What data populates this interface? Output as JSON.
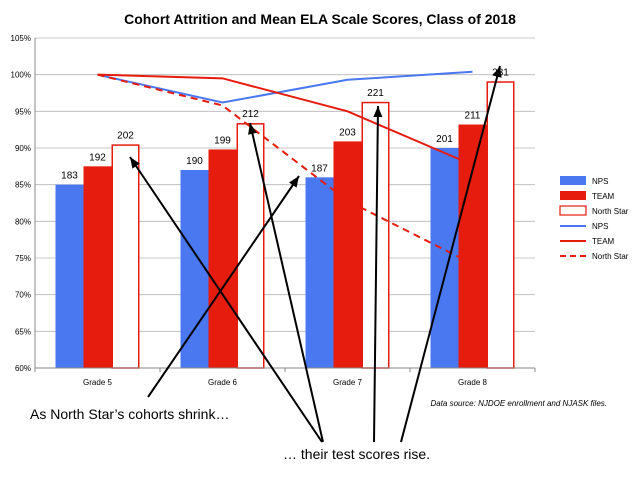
{
  "chart_data": {
    "type": "bar",
    "title": "Cohort Attrition and Mean ELA Scale Scores, Class of 2018",
    "categories": [
      "Grade 5",
      "Grade 6",
      "Grade 7",
      "Grade 8"
    ],
    "ylim": [
      0.6,
      1.05
    ],
    "yticks": [
      "60%",
      "65%",
      "70%",
      "75%",
      "80%",
      "85%",
      "90%",
      "95%",
      "100%",
      "105%"
    ],
    "grid": true,
    "legend_position": "right",
    "bar_series": [
      {
        "name": "NPS",
        "color": "#4a78f0",
        "style": "filled",
        "values": [
          0.85,
          0.87,
          0.86,
          0.9
        ],
        "labels": [
          "183",
          "190",
          "187",
          "201"
        ]
      },
      {
        "name": "TEAM",
        "color": "#e51c0e",
        "style": "filled",
        "values": [
          0.875,
          0.898,
          0.909,
          0.932
        ],
        "labels": [
          "192",
          "199",
          "203",
          "211"
        ]
      },
      {
        "name": "North Star",
        "color": "#e51c0e",
        "style": "outline",
        "values": [
          0.905,
          0.934,
          0.963,
          0.991
        ],
        "labels": [
          "202",
          "212",
          "221",
          "231"
        ]
      }
    ],
    "line_series": [
      {
        "name": "NPS",
        "color": "#4a78f0",
        "dash": false,
        "values": [
          1.0,
          0.962,
          0.993,
          1.004
        ]
      },
      {
        "name": "TEAM",
        "color": "#e51c0e",
        "dash": false,
        "values": [
          1.0,
          0.995,
          0.95,
          0.877
        ]
      },
      {
        "name": "North Star",
        "color": "#e51c0e",
        "dash": true,
        "values": [
          1.0,
          0.958,
          0.828,
          0.742
        ]
      }
    ],
    "source_note": "Data source: NJDOE enrollment and NJASK files.",
    "annotations": {
      "left": "As North Star’s cohorts shrink…",
      "right": "… their test scores rise."
    }
  }
}
